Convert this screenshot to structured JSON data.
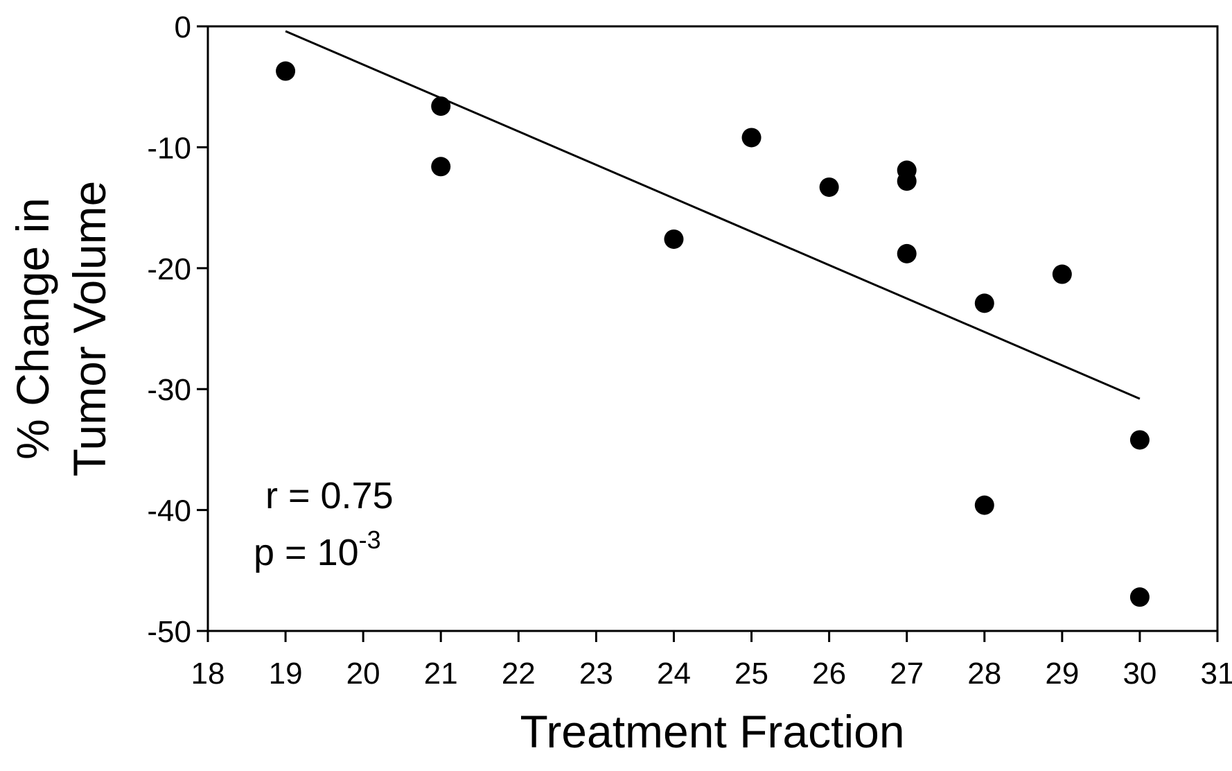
{
  "chart_data": {
    "type": "scatter",
    "title": "",
    "xlabel": "Treatment Fraction",
    "ylabel_lines": [
      "% Change in",
      "Tumor Volume"
    ],
    "xlim": [
      18,
      31
    ],
    "ylim": [
      -50,
      0
    ],
    "xticks": [
      18,
      19,
      20,
      21,
      22,
      23,
      24,
      25,
      26,
      27,
      28,
      29,
      30,
      31
    ],
    "yticks": [
      0,
      -10,
      -20,
      -30,
      -40,
      -50
    ],
    "grid": false,
    "legend": "none",
    "series": [
      {
        "points": [
          {
            "x": 19,
            "y": -3.7
          },
          {
            "x": 21,
            "y": -6.6
          },
          {
            "x": 21,
            "y": -11.6
          },
          {
            "x": 24,
            "y": -17.6
          },
          {
            "x": 25,
            "y": -9.2
          },
          {
            "x": 26,
            "y": -13.3
          },
          {
            "x": 27,
            "y": -11.9
          },
          {
            "x": 27,
            "y": -12.8
          },
          {
            "x": 27,
            "y": -18.8
          },
          {
            "x": 28,
            "y": -22.9
          },
          {
            "x": 29,
            "y": -20.5
          },
          {
            "x": 30,
            "y": -34.2
          },
          {
            "x": 28,
            "y": -39.6
          },
          {
            "x": 30,
            "y": -47.2
          }
        ]
      }
    ],
    "trendline": {
      "x": [
        19,
        30
      ],
      "y": [
        -0.4,
        -30.8
      ]
    },
    "annotations": {
      "r_text": "r = 0.75",
      "p_text": "p = 10",
      "p_exponent": "-3"
    },
    "colors": {
      "marker": "#000000",
      "line": "#000000",
      "axis": "#000000"
    }
  }
}
